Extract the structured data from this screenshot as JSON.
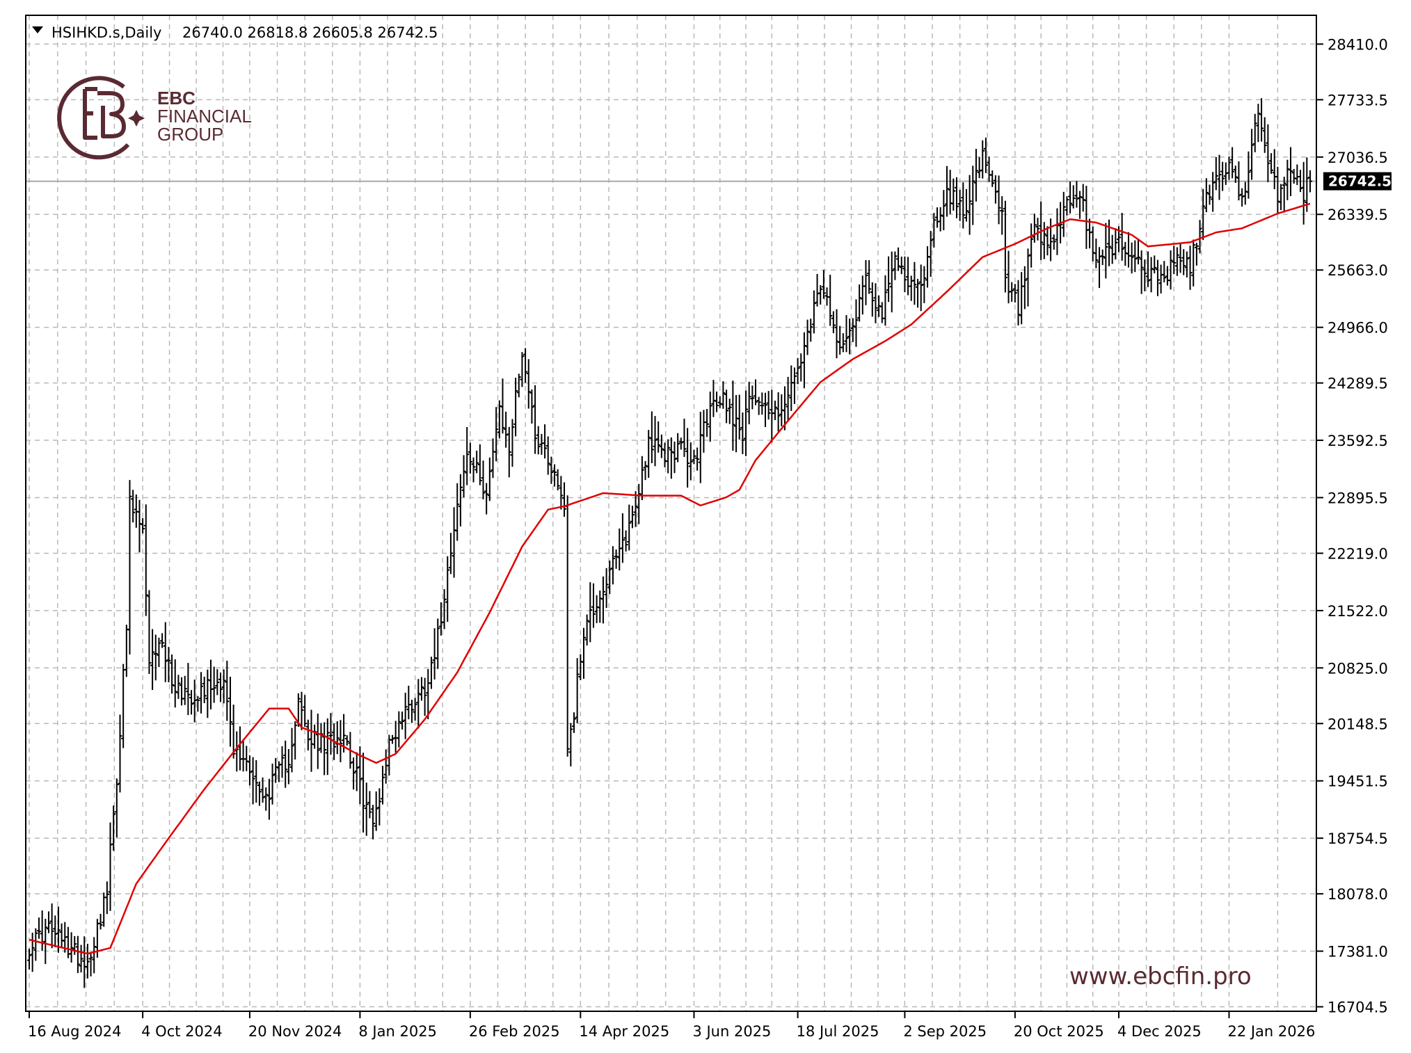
{
  "header": {
    "symbol": "HSIHKD.s,Daily",
    "ohlc": "26740.0 26818.8 26605.8 26742.5"
  },
  "logo": {
    "line1": "EBC",
    "line2": "FINANCIAL",
    "line3": "GROUP"
  },
  "website": "www.ebcfin.pro",
  "colors": {
    "bars": "#000000",
    "moving_average": "#e00000",
    "grid": "#b8b8b8",
    "brand": "#5a2a32",
    "last_price_bg": "#000000"
  },
  "chart_data": {
    "type": "line",
    "style": "ohlc-bars with moving average",
    "last_price": 26742.5,
    "last_price_label": "26742.5",
    "y_ticks": [
      28410.0,
      27733.5,
      27036.5,
      26339.5,
      25663.0,
      24966.0,
      24289.5,
      23592.5,
      22895.5,
      22219.0,
      21522.0,
      20825.0,
      20148.5,
      19451.5,
      18754.5,
      18078.0,
      17381.0,
      16704.5
    ],
    "y_tick_labels": [
      "28410.0",
      "27733.5",
      "27036.5",
      "26339.5",
      "25663.0",
      "24966.0",
      "24289.5",
      "23592.5",
      "22895.5",
      "22219.0",
      "21522.0",
      "20825.0",
      "20148.5",
      "19451.5",
      "18754.5",
      "18078.0",
      "17381.0",
      "16704.5"
    ],
    "ylim": [
      16650,
      28760
    ],
    "x_tick_labels": [
      "16 Aug 2024",
      "4 Oct 2024",
      "20 Nov 2024",
      "8 Jan 2025",
      "26 Feb 2025",
      "14 Apr 2025",
      "3 Jun 2025",
      "18 Jul 2025",
      "2 Sep 2025",
      "20 Oct 2025",
      "4 Dec 2025",
      "22 Jan 2026"
    ],
    "grid": true,
    "close_anchors": [
      [
        "2024-08-16",
        17450
      ],
      [
        "2024-08-26",
        17650
      ],
      [
        "2024-09-04",
        17400
      ],
      [
        "2024-09-11",
        17250
      ],
      [
        "2024-09-19",
        18100
      ],
      [
        "2024-09-24",
        19500
      ],
      [
        "2024-09-27",
        21300
      ],
      [
        "2024-09-30",
        22800
      ],
      [
        "2024-10-04",
        22500
      ],
      [
        "2024-10-08",
        20800
      ],
      [
        "2024-10-11",
        21200
      ],
      [
        "2024-10-18",
        20600
      ],
      [
        "2024-10-25",
        20500
      ],
      [
        "2024-11-01",
        20600
      ],
      [
        "2024-11-08",
        20700
      ],
      [
        "2024-11-13",
        19800
      ],
      [
        "2024-11-20",
        19650
      ],
      [
        "2024-11-26",
        19200
      ],
      [
        "2024-12-02",
        19500
      ],
      [
        "2024-12-06",
        19750
      ],
      [
        "2024-12-11",
        20400
      ],
      [
        "2024-12-16",
        19950
      ],
      [
        "2024-12-23",
        19900
      ],
      [
        "2024-12-31",
        20050
      ],
      [
        "2025-01-06",
        19500
      ],
      [
        "2025-01-13",
        18900
      ],
      [
        "2025-01-20",
        19900
      ],
      [
        "2025-01-27",
        20300
      ],
      [
        "2025-02-04",
        20600
      ],
      [
        "2025-02-10",
        21200
      ],
      [
        "2025-02-17",
        22600
      ],
      [
        "2025-02-21",
        23400
      ],
      [
        "2025-03-03",
        23000
      ],
      [
        "2025-03-07",
        23900
      ],
      [
        "2025-03-12",
        23500
      ],
      [
        "2025-03-18",
        24700
      ],
      [
        "2025-03-24",
        23700
      ],
      [
        "2025-03-31",
        23300
      ],
      [
        "2025-04-04",
        22800
      ],
      [
        "2025-04-07",
        19900
      ],
      [
        "2025-04-09",
        20300
      ],
      [
        "2025-04-14",
        21300
      ],
      [
        "2025-04-22",
        21800
      ],
      [
        "2025-04-30",
        22300
      ],
      [
        "2025-05-06",
        22800
      ],
      [
        "2025-05-12",
        23600
      ],
      [
        "2025-05-16",
        23400
      ],
      [
        "2025-05-23",
        23500
      ],
      [
        "2025-05-30",
        23300
      ],
      [
        "2025-06-05",
        23900
      ],
      [
        "2025-06-12",
        24100
      ],
      [
        "2025-06-20",
        23700
      ],
      [
        "2025-06-25",
        24200
      ],
      [
        "2025-07-03",
        23900
      ],
      [
        "2025-07-10",
        24100
      ],
      [
        "2025-07-18",
        24800
      ],
      [
        "2025-07-24",
        25500
      ],
      [
        "2025-07-31",
        24800
      ],
      [
        "2025-08-07",
        25000
      ],
      [
        "2025-08-13",
        25600
      ],
      [
        "2025-08-20",
        25100
      ],
      [
        "2025-08-26",
        25800
      ],
      [
        "2025-09-02",
        25500
      ],
      [
        "2025-09-05",
        25400
      ],
      [
        "2025-09-10",
        26100
      ],
      [
        "2025-09-17",
        26600
      ],
      [
        "2025-09-24",
        26400
      ],
      [
        "2025-10-02",
        27000
      ],
      [
        "2025-10-10",
        26300
      ],
      [
        "2025-10-13",
        25500
      ],
      [
        "2025-10-17",
        25200
      ],
      [
        "2025-10-24",
        26100
      ],
      [
        "2025-10-31",
        25900
      ],
      [
        "2025-11-06",
        26400
      ],
      [
        "2025-11-13",
        26600
      ],
      [
        "2025-11-19",
        25800
      ],
      [
        "2025-11-25",
        25900
      ],
      [
        "2025-12-01",
        26000
      ],
      [
        "2025-12-08",
        25800
      ],
      [
        "2025-12-15",
        25600
      ],
      [
        "2025-12-19",
        25500
      ],
      [
        "2025-12-24",
        25800
      ],
      [
        "2025-12-31",
        25700
      ],
      [
        "2026-01-06",
        26400
      ],
      [
        "2026-01-12",
        26800
      ],
      [
        "2026-01-16",
        26900
      ],
      [
        "2026-01-22",
        26500
      ],
      [
        "2026-01-27",
        27200
      ],
      [
        "2026-01-29",
        27500
      ],
      [
        "2026-02-03",
        26900
      ],
      [
        "2026-02-06",
        26600
      ],
      [
        "2026-02-12",
        26900
      ],
      [
        "2026-02-18",
        26600
      ],
      [
        "2026-02-20",
        26742.5
      ]
    ],
    "ma_anchors": [
      [
        "2024-08-16",
        17520
      ],
      [
        "2024-09-11",
        17350
      ],
      [
        "2024-09-20",
        17420
      ],
      [
        "2024-10-02",
        18200
      ],
      [
        "2024-10-15",
        18700
      ],
      [
        "2024-10-31",
        19350
      ],
      [
        "2024-11-14",
        19850
      ],
      [
        "2024-11-28",
        20330
      ],
      [
        "2024-12-06",
        20330
      ],
      [
        "2024-12-12",
        20100
      ],
      [
        "2024-12-23",
        20000
      ],
      [
        "2025-01-06",
        19780
      ],
      [
        "2025-01-14",
        19670
      ],
      [
        "2025-01-22",
        19780
      ],
      [
        "2025-02-04",
        20200
      ],
      [
        "2025-02-18",
        20770
      ],
      [
        "2025-03-04",
        21500
      ],
      [
        "2025-03-18",
        22300
      ],
      [
        "2025-03-28",
        22750
      ],
      [
        "2025-04-04",
        22790
      ],
      [
        "2025-04-22",
        22950
      ],
      [
        "2025-05-08",
        22920
      ],
      [
        "2025-05-26",
        22920
      ],
      [
        "2025-06-03",
        22800
      ],
      [
        "2025-06-13",
        22900
      ],
      [
        "2025-06-19",
        22990
      ],
      [
        "2025-06-26",
        23350
      ],
      [
        "2025-07-10",
        23830
      ],
      [
        "2025-07-24",
        24300
      ],
      [
        "2025-08-07",
        24580
      ],
      [
        "2025-08-21",
        24800
      ],
      [
        "2025-09-02",
        25000
      ],
      [
        "2025-09-17",
        25400
      ],
      [
        "2025-10-02",
        25820
      ],
      [
        "2025-10-16",
        25980
      ],
      [
        "2025-10-30",
        26170
      ],
      [
        "2025-11-10",
        26280
      ],
      [
        "2025-11-20",
        26240
      ],
      [
        "2025-12-05",
        26090
      ],
      [
        "2025-12-12",
        25950
      ],
      [
        "2025-12-31",
        26000
      ],
      [
        "2026-01-12",
        26120
      ],
      [
        "2026-01-22",
        26170
      ],
      [
        "2026-02-06",
        26350
      ],
      [
        "2026-02-20",
        26470
      ]
    ]
  }
}
